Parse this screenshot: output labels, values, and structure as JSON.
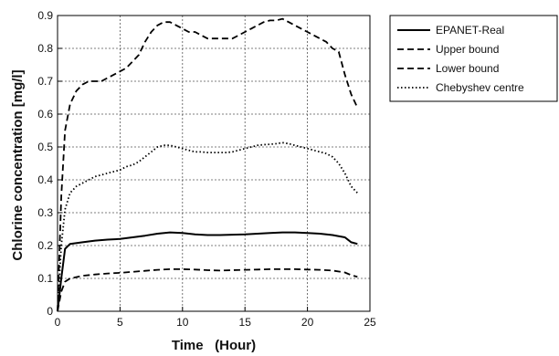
{
  "chart_data": {
    "type": "line",
    "xlabel": "Time   (Hour)",
    "ylabel": "Chlorine concentration [mg/l]",
    "xlim": [
      0,
      25
    ],
    "ylim": [
      0,
      0.9
    ],
    "xticks": [
      0,
      5,
      10,
      15,
      20,
      25
    ],
    "yticks": [
      0,
      0.1,
      0.2,
      0.3,
      0.4,
      0.5,
      0.6,
      0.7,
      0.8,
      0.9
    ],
    "xtick_labels": [
      "0",
      "5",
      "10",
      "15",
      "20",
      "25"
    ],
    "ytick_labels": [
      "0",
      "0.1",
      "0.2",
      "0.3",
      "0.4",
      "0.5",
      "0.6",
      "0.7",
      "0.8",
      "0.9"
    ],
    "grid": true,
    "legend_position": "outside-right",
    "series": [
      {
        "name": "EPANET-Real",
        "style": "solid",
        "color": "#000000",
        "x": [
          0,
          0.3,
          0.6,
          1.0,
          2,
          3,
          4,
          5,
          6,
          7,
          8,
          9,
          10,
          11,
          12,
          13,
          14,
          15,
          16,
          17,
          18,
          19,
          20,
          21,
          22,
          23,
          23.5,
          24
        ],
        "y": [
          0,
          0.1,
          0.19,
          0.205,
          0.21,
          0.215,
          0.218,
          0.22,
          0.225,
          0.23,
          0.236,
          0.24,
          0.238,
          0.234,
          0.232,
          0.232,
          0.233,
          0.234,
          0.236,
          0.238,
          0.24,
          0.24,
          0.238,
          0.236,
          0.232,
          0.225,
          0.21,
          0.205
        ]
      },
      {
        "name": "Upper bound",
        "style": "dashed",
        "color": "#000000",
        "x": [
          0,
          0.3,
          0.6,
          1.0,
          1.5,
          2,
          2.5,
          3,
          3.5,
          4,
          4.5,
          5,
          5.5,
          6,
          6.5,
          7,
          7.5,
          8,
          8.5,
          9,
          9.5,
          10,
          10.5,
          11,
          11.5,
          12,
          12.5,
          13,
          13.5,
          14,
          14.5,
          15,
          15.5,
          16,
          16.5,
          17,
          17.5,
          18,
          18.5,
          19,
          19.5,
          20,
          20.5,
          21,
          21.5,
          22,
          22.5,
          23,
          23.5,
          24
        ],
        "y": [
          0,
          0.35,
          0.55,
          0.63,
          0.67,
          0.69,
          0.7,
          0.7,
          0.7,
          0.71,
          0.72,
          0.73,
          0.74,
          0.76,
          0.78,
          0.82,
          0.85,
          0.87,
          0.88,
          0.88,
          0.87,
          0.86,
          0.85,
          0.85,
          0.84,
          0.83,
          0.83,
          0.83,
          0.83,
          0.83,
          0.84,
          0.85,
          0.86,
          0.87,
          0.88,
          0.885,
          0.885,
          0.89,
          0.88,
          0.87,
          0.86,
          0.85,
          0.84,
          0.83,
          0.82,
          0.8,
          0.79,
          0.72,
          0.66,
          0.62
        ]
      },
      {
        "name": "Lower bound",
        "style": "dashed",
        "color": "#000000",
        "x": [
          0,
          0.3,
          0.6,
          1.0,
          2,
          3,
          4,
          5,
          6,
          7,
          8,
          9,
          10,
          11,
          12,
          13,
          14,
          15,
          16,
          17,
          18,
          19,
          20,
          21,
          22,
          23,
          23.5,
          24
        ],
        "y": [
          0,
          0.06,
          0.09,
          0.1,
          0.108,
          0.112,
          0.115,
          0.117,
          0.12,
          0.123,
          0.126,
          0.128,
          0.128,
          0.127,
          0.125,
          0.124,
          0.125,
          0.126,
          0.127,
          0.128,
          0.128,
          0.128,
          0.127,
          0.126,
          0.124,
          0.118,
          0.11,
          0.105
        ]
      },
      {
        "name": "Chebyshev centre",
        "style": "dotted",
        "color": "#000000",
        "x": [
          0,
          0.3,
          0.6,
          1.0,
          1.5,
          2,
          2.5,
          3,
          3.5,
          4,
          4.5,
          5,
          5.5,
          6,
          6.5,
          7,
          7.5,
          8,
          8.5,
          9,
          9.5,
          10,
          10.5,
          11,
          11.5,
          12,
          12.5,
          13,
          13.5,
          14,
          14.5,
          15,
          15.5,
          16,
          16.5,
          17,
          17.5,
          18,
          18.5,
          19,
          19.5,
          20,
          20.5,
          21,
          21.5,
          22,
          22.5,
          23,
          23.5,
          24
        ],
        "y": [
          0,
          0.2,
          0.31,
          0.36,
          0.38,
          0.39,
          0.4,
          0.41,
          0.415,
          0.42,
          0.425,
          0.43,
          0.44,
          0.445,
          0.455,
          0.47,
          0.485,
          0.5,
          0.505,
          0.505,
          0.5,
          0.495,
          0.49,
          0.485,
          0.485,
          0.483,
          0.483,
          0.483,
          0.483,
          0.485,
          0.49,
          0.495,
          0.5,
          0.505,
          0.507,
          0.508,
          0.51,
          0.513,
          0.51,
          0.505,
          0.5,
          0.495,
          0.49,
          0.485,
          0.48,
          0.47,
          0.45,
          0.42,
          0.38,
          0.36
        ]
      }
    ]
  }
}
